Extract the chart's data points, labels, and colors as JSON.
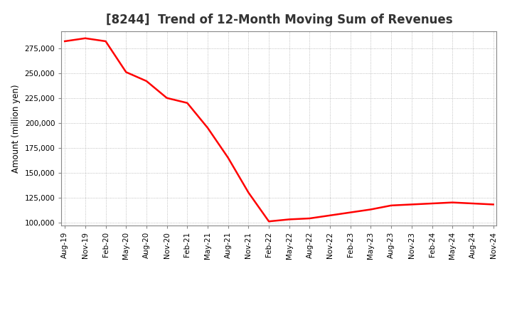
{
  "title": "[8244]  Trend of 12-Month Moving Sum of Revenues",
  "ylabel": "Amount (million yen)",
  "line_color": "#FF0000",
  "line_width": 1.8,
  "background_color": "#FFFFFF",
  "plot_bg_color": "#FFFFFF",
  "grid_color": "#999999",
  "xlabels": [
    "Aug-19",
    "Nov-19",
    "Feb-20",
    "May-20",
    "Aug-20",
    "Nov-20",
    "Feb-21",
    "May-21",
    "Aug-21",
    "Nov-21",
    "Feb-22",
    "May-22",
    "Aug-22",
    "Nov-22",
    "Feb-23",
    "May-23",
    "Aug-23",
    "Nov-23",
    "Feb-24",
    "May-24",
    "Aug-24",
    "Nov-24"
  ],
  "x_values": [
    0,
    3,
    6,
    9,
    12,
    15,
    18,
    21,
    24,
    27,
    30,
    33,
    36,
    39,
    42,
    45,
    48,
    51,
    54,
    57,
    60,
    63
  ],
  "y_values": [
    282000,
    285000,
    282000,
    251000,
    242000,
    225000,
    220000,
    195000,
    165000,
    130000,
    101000,
    103000,
    104000,
    107000,
    110000,
    113000,
    117000,
    118000,
    119000,
    120000,
    119000,
    118000
  ],
  "ylim": [
    97000,
    292000
  ],
  "yticks": [
    100000,
    125000,
    150000,
    175000,
    200000,
    225000,
    250000,
    275000
  ],
  "title_fontsize": 12,
  "axis_fontsize": 8.5,
  "tick_fontsize": 7.5
}
